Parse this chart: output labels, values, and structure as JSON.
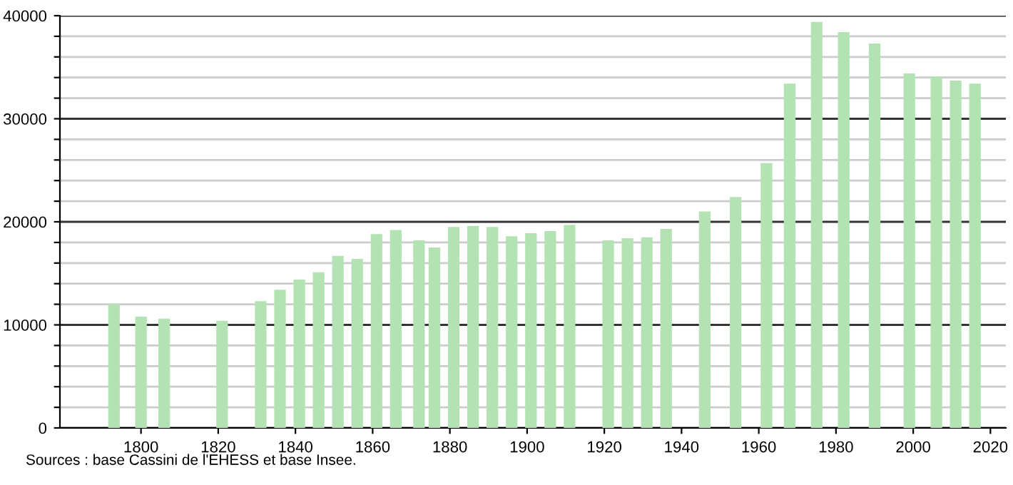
{
  "chart_data": {
    "type": "bar",
    "x": [
      1793,
      1800,
      1806,
      1821,
      1831,
      1836,
      1841,
      1846,
      1851,
      1856,
      1861,
      1866,
      1872,
      1876,
      1881,
      1886,
      1891,
      1896,
      1901,
      1906,
      1911,
      1921,
      1926,
      1931,
      1936,
      1946,
      1954,
      1962,
      1968,
      1975,
      1982,
      1990,
      1999,
      2006,
      2011,
      2016
    ],
    "values": [
      12000,
      10800,
      10600,
      10400,
      12300,
      13400,
      14400,
      15100,
      16700,
      16400,
      18800,
      19200,
      18200,
      17500,
      19500,
      19600,
      19500,
      18600,
      18900,
      19100,
      19700,
      18200,
      18400,
      18500,
      19300,
      21000,
      22400,
      25700,
      33400,
      39400,
      38400,
      37300,
      34400,
      34100,
      33700,
      33400
    ],
    "color": "#b3e3b3",
    "xlim": [
      1779,
      2024
    ],
    "xticks": [
      1800,
      1820,
      1840,
      1860,
      1880,
      1900,
      1920,
      1940,
      1960,
      1980,
      2000,
      2020
    ],
    "ylim": [
      0,
      40000
    ],
    "yticks": [
      0,
      {
        "value": 2000,
        "label": null
      },
      {
        "value": 4000,
        "label": null
      },
      {
        "value": 6000,
        "label": null
      },
      {
        "value": 8000,
        "label": null
      },
      10000,
      {
        "value": 12000,
        "label": null
      },
      {
        "value": 14000,
        "label": null
      },
      {
        "value": 16000,
        "label": null
      },
      {
        "value": 18000,
        "label": null
      },
      20000,
      {
        "value": 22000,
        "label": null
      },
      {
        "value": 24000,
        "label": null
      },
      {
        "value": 26000,
        "label": null
      },
      {
        "value": 28000,
        "label": null
      },
      30000,
      {
        "value": 32000,
        "label": null
      },
      {
        "value": 34000,
        "label": null
      },
      {
        "value": 36000,
        "label": null
      },
      {
        "value": 38000,
        "label": null
      },
      40000
    ],
    "grid": "y",
    "annotations": [
      "Sources : base Cassini de l'EHESS et base Insee."
    ]
  }
}
